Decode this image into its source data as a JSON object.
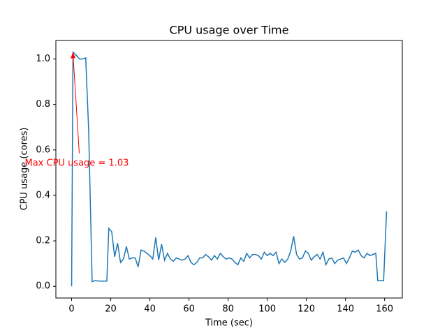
{
  "chart_data": {
    "type": "line",
    "title": "CPU usage over Time",
    "x_label": "Time (sec)",
    "y_label": "CPU usage (cores)",
    "x": [
      0,
      0.7,
      2.5,
      4,
      5.5,
      7.2,
      8.7,
      10.5,
      12,
      14,
      16,
      18,
      19,
      20.5,
      22,
      23.5,
      25,
      26.5,
      28,
      29.5,
      31,
      32.5,
      34,
      35.5,
      37,
      38.5,
      40,
      41.5,
      43,
      44.5,
      46,
      47.5,
      49,
      50.5,
      52,
      53.5,
      55,
      56.5,
      58,
      59.5,
      61,
      62.5,
      64,
      65.5,
      67,
      68.5,
      70,
      71.5,
      73,
      74.5,
      76,
      77.5,
      79,
      80.5,
      82,
      83.5,
      85,
      86.5,
      88,
      89.5,
      91,
      92.5,
      94,
      95.5,
      97,
      98.5,
      100,
      101.5,
      103,
      104.5,
      106,
      107.5,
      109,
      110.5,
      112,
      113.5,
      115,
      116.5,
      118,
      119.5,
      121,
      122.5,
      124,
      125.5,
      127,
      128.5,
      130,
      131.5,
      133,
      134.5,
      136,
      137.5,
      139,
      140.5,
      142,
      143.5,
      145,
      146.5,
      148,
      149.5,
      151,
      152.5,
      154,
      155.5,
      156.5,
      159.5,
      161
    ],
    "series": [
      {
        "name": "CPU usage",
        "color": "#1f77b4",
        "values": [
          0,
          1.03,
          1.015,
          1.0,
          1.0,
          1.005,
          0.69,
          0.02,
          0.025,
          0.023,
          0.023,
          0.023,
          0.255,
          0.24,
          0.13,
          0.19,
          0.105,
          0.12,
          0.175,
          0.12,
          0.125,
          0.125,
          0.085,
          0.16,
          0.155,
          0.145,
          0.135,
          0.12,
          0.215,
          0.115,
          0.185,
          0.115,
          0.145,
          0.12,
          0.11,
          0.125,
          0.12,
          0.115,
          0.12,
          0.135,
          0.105,
          0.095,
          0.105,
          0.125,
          0.125,
          0.14,
          0.13,
          0.115,
          0.135,
          0.12,
          0.145,
          0.13,
          0.12,
          0.125,
          0.12,
          0.105,
          0.095,
          0.125,
          0.11,
          0.145,
          0.125,
          0.14,
          0.14,
          0.135,
          0.12,
          0.15,
          0.135,
          0.145,
          0.135,
          0.15,
          0.1,
          0.12,
          0.105,
          0.12,
          0.155,
          0.22,
          0.14,
          0.12,
          0.125,
          0.155,
          0.145,
          0.115,
          0.13,
          0.14,
          0.12,
          0.15,
          0.095,
          0.12,
          0.125,
          0.1,
          0.115,
          0.12,
          0.125,
          0.1,
          0.125,
          0.155,
          0.15,
          0.16,
          0.135,
          0.125,
          0.145,
          0.135,
          0.14,
          0.145,
          0.025,
          0.025,
          0.33
        ]
      }
    ],
    "xlim": [
      -8.05,
      169.05
    ],
    "ylim": [
      -0.0515,
      1.0815
    ],
    "xticks": [
      0,
      20,
      40,
      60,
      80,
      100,
      120,
      140,
      160
    ],
    "yticks": [
      {
        "value": 0,
        "label": "0.0"
      },
      0.2,
      0.4,
      0.6,
      0.8,
      {
        "value": 1,
        "label": "1.0"
      }
    ],
    "annotation": {
      "text": "Max CPU usage = 1.03",
      "color": "red"
    }
  }
}
